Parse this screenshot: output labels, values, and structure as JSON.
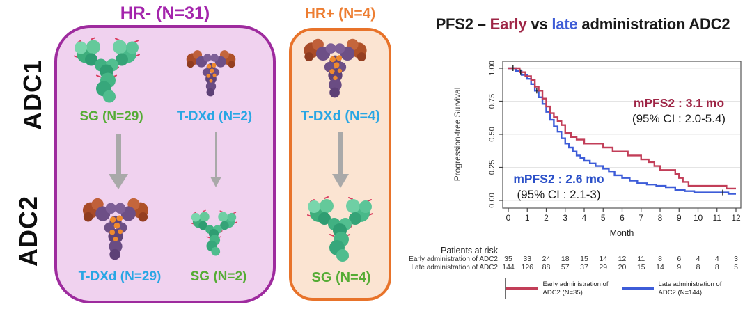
{
  "diagram": {
    "row_labels": {
      "adc1": "ADC1",
      "adc2": "ADC2"
    },
    "groups": {
      "hr_negative": {
        "header": "HR- (N=31)",
        "adc1_items": [
          {
            "drug": "SG",
            "label": "SG (N=29)"
          },
          {
            "drug": "T-DXd",
            "label": "T-DXd (N=2)"
          }
        ],
        "adc2_items": [
          {
            "drug": "T-DXd",
            "label": "T-DXd (N=29)"
          },
          {
            "drug": "SG",
            "label": "SG (N=2)"
          }
        ]
      },
      "hr_positive": {
        "header": "HR+ (N=4)",
        "adc1_item": {
          "drug": "T-DXd",
          "label": "T-DXd (N=4)"
        },
        "adc2_item": {
          "drug": "SG",
          "label": "SG (N=4)"
        }
      }
    },
    "colors": {
      "hr_negative_accent": "#A425AC",
      "hr_negative_border": "#9E2B9E",
      "hr_negative_fill": "#F0D2EF",
      "hr_positive_accent": "#ED7D31",
      "hr_positive_border": "#E8732A",
      "hr_positive_fill": "#FBE4D2",
      "sg_label_color": "#55AC35",
      "tdxd_label_color": "#29A6E4",
      "arrow": "#A9A9A9"
    }
  },
  "chart": {
    "title_parts": {
      "pre": "PFS2 – ",
      "early": "Early",
      "vs": " vs ",
      "late": "late",
      "post": " administration ADC2"
    },
    "title_colors": {
      "base": "#1A1A1A",
      "early": "#9E2445",
      "late": "#3E5CD6"
    }
  },
  "chart_data": {
    "type": "line",
    "subtype": "kaplan-meier-step",
    "title": "PFS2 – Early vs late administration ADC2",
    "xlabel": "Month",
    "ylabel": "Progression-free Survival",
    "xlim": [
      0,
      12
    ],
    "ylim": [
      0,
      1.0
    ],
    "xticks": [
      0,
      1,
      2,
      3,
      4,
      5,
      6,
      7,
      8,
      9,
      10,
      11,
      12
    ],
    "yticks": [
      "0.00",
      "0.25",
      "0.50",
      "0.75",
      "1.00"
    ],
    "grid": true,
    "legend_position": "bottom",
    "series": [
      {
        "name": "Early administration of ADC2 (N=35)",
        "color": "#C23E58",
        "text_color": "#9E2445",
        "median_months": 3.1,
        "ci": "2.0-5.4",
        "median_label": "mPFS2 : 3.1 mo",
        "ci_label": "(95% CI : 2.0-5.4)",
        "start": [
          0,
          1.0
        ],
        "steps": [
          [
            0.6,
            0.97
          ],
          [
            0.9,
            0.94
          ],
          [
            1.2,
            0.91
          ],
          [
            1.4,
            0.86
          ],
          [
            1.6,
            0.83
          ],
          [
            1.8,
            0.77
          ],
          [
            2.0,
            0.71
          ],
          [
            2.2,
            0.66
          ],
          [
            2.4,
            0.63
          ],
          [
            2.6,
            0.6
          ],
          [
            2.8,
            0.57
          ],
          [
            3.0,
            0.51
          ],
          [
            3.3,
            0.48
          ],
          [
            3.6,
            0.46
          ],
          [
            4.0,
            0.43
          ],
          [
            5.0,
            0.4
          ],
          [
            5.5,
            0.37
          ],
          [
            6.3,
            0.34
          ],
          [
            7.0,
            0.31
          ],
          [
            7.4,
            0.29
          ],
          [
            7.7,
            0.26
          ],
          [
            8.0,
            0.23
          ],
          [
            8.8,
            0.2
          ],
          [
            9.0,
            0.17
          ],
          [
            9.2,
            0.14
          ],
          [
            9.5,
            0.11
          ],
          [
            11.5,
            0.09
          ]
        ],
        "end_x": 12,
        "censor_times": [
          0.25,
          0.65
        ]
      },
      {
        "name": "Late administration of ADC2 (N=144)",
        "color": "#3D5CD8",
        "text_color": "#2B50C8",
        "median_months": 2.6,
        "ci": "2.1-3",
        "median_label": "mPFS2 : 2.6 mo",
        "ci_label": "(95% CI : 2.1-3)",
        "start": [
          0,
          1.0
        ],
        "steps": [
          [
            0.4,
            0.98
          ],
          [
            0.7,
            0.95
          ],
          [
            1.0,
            0.92
          ],
          [
            1.2,
            0.88
          ],
          [
            1.4,
            0.83
          ],
          [
            1.6,
            0.78
          ],
          [
            1.8,
            0.73
          ],
          [
            2.0,
            0.67
          ],
          [
            2.2,
            0.61
          ],
          [
            2.4,
            0.56
          ],
          [
            2.6,
            0.52
          ],
          [
            2.8,
            0.47
          ],
          [
            3.0,
            0.43
          ],
          [
            3.2,
            0.4
          ],
          [
            3.4,
            0.37
          ],
          [
            3.6,
            0.34
          ],
          [
            3.8,
            0.32
          ],
          [
            4.0,
            0.3
          ],
          [
            4.3,
            0.28
          ],
          [
            4.6,
            0.26
          ],
          [
            5.0,
            0.24
          ],
          [
            5.3,
            0.22
          ],
          [
            5.6,
            0.19
          ],
          [
            6.0,
            0.17
          ],
          [
            6.4,
            0.15
          ],
          [
            6.8,
            0.13
          ],
          [
            7.3,
            0.12
          ],
          [
            7.8,
            0.11
          ],
          [
            8.3,
            0.1
          ],
          [
            8.8,
            0.08
          ],
          [
            9.3,
            0.07
          ],
          [
            9.8,
            0.06
          ],
          [
            11.6,
            0.05
          ]
        ],
        "end_x": 12,
        "censor_times": [
          1.5,
          11.3
        ]
      }
    ],
    "risk_table": {
      "header": "Patients at risk",
      "rows": [
        {
          "label": "Early administration of ADC2",
          "values": [
            35,
            33,
            24,
            18,
            15,
            14,
            12,
            11,
            8,
            6,
            4,
            4,
            3
          ]
        },
        {
          "label": "Late administration of ADC2",
          "values": [
            144,
            126,
            88,
            57,
            37,
            29,
            20,
            15,
            14,
            9,
            8,
            8,
            5
          ]
        }
      ]
    }
  }
}
